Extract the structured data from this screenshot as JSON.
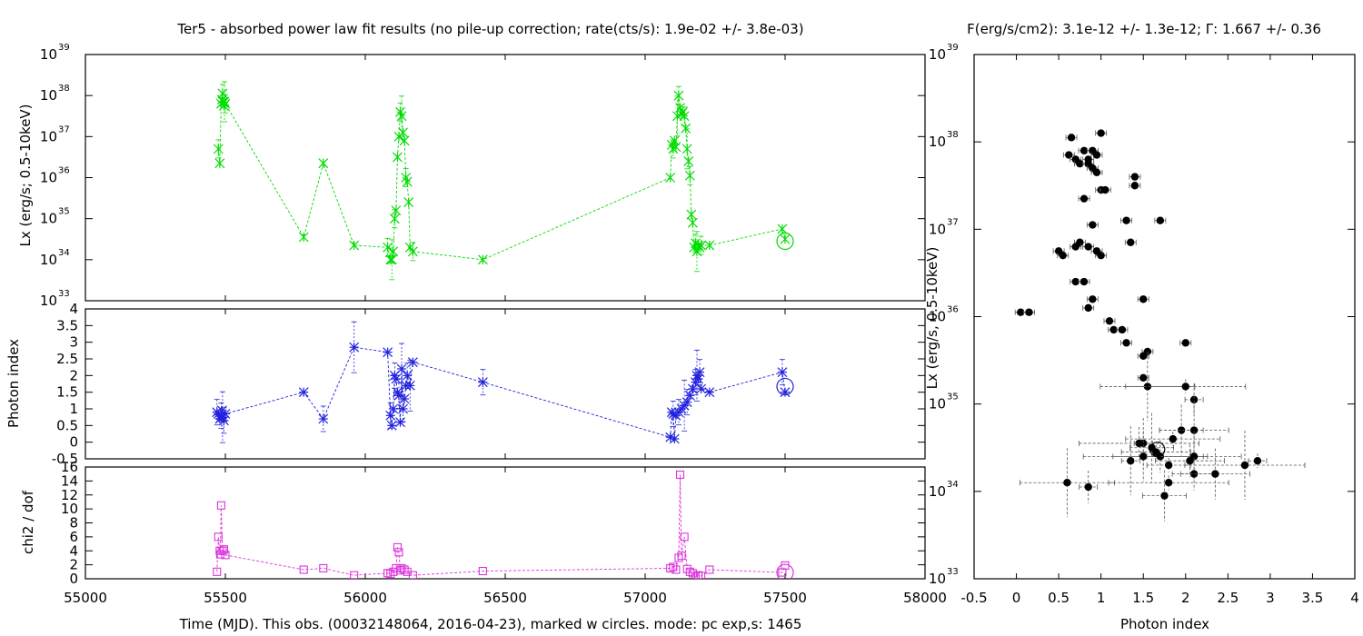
{
  "titles": {
    "left": "Ter5  - absorbed power law fit results (no pile-up correction; rate(cts/s): 1.9e-02 +/- 3.8e-03)",
    "right": "F(erg/s/cm2): 3.1e-12 +/- 1.3e-12; Γ: 1.667 +/- 0.36"
  },
  "chart_data": [
    {
      "type": "line",
      "panel": "lx",
      "ylabel": "Lx (erg/s; 0.5-10keV)",
      "yscale": "log",
      "xlim": [
        55000,
        58000
      ],
      "ylim_exp": [
        33,
        39
      ],
      "color": "#00dd00",
      "marker": "x-star",
      "x": [
        55475,
        55480,
        55485,
        55488,
        55490,
        55492,
        55495,
        55497,
        55500,
        55780,
        55850,
        55960,
        56080,
        56090,
        56095,
        56100,
        56105,
        56110,
        56115,
        56120,
        56125,
        56130,
        56135,
        56140,
        56145,
        56150,
        56155,
        56160,
        56170,
        56420,
        57090,
        57095,
        57100,
        57105,
        57110,
        57115,
        57120,
        57125,
        57130,
        57135,
        57140,
        57145,
        57150,
        57155,
        57160,
        57165,
        57170,
        57175,
        57180,
        57185,
        57190,
        57195,
        57200,
        57230,
        57490,
        57500
      ],
      "y_exp": [
        36.7,
        36.35,
        37.8,
        37.9,
        38.05,
        37.85,
        37.75,
        37.85,
        37.8,
        34.55,
        36.35,
        34.35,
        34.3,
        34.0,
        34.0,
        34.2,
        35.0,
        35.2,
        36.5,
        37.0,
        37.6,
        37.5,
        37.1,
        36.9,
        36.0,
        35.9,
        35.4,
        34.3,
        34.2,
        34.0,
        36.0,
        36.8,
        36.7,
        36.9,
        36.75,
        37.5,
        38.0,
        37.7,
        37.55,
        37.6,
        37.5,
        37.2,
        36.7,
        36.4,
        36.05,
        35.1,
        34.9,
        34.3,
        34.4,
        34.2,
        34.35,
        34.3,
        34.35,
        34.35,
        34.75,
        34.5
      ],
      "current_obs": {
        "x": 57500,
        "y_exp": 34.45
      }
    },
    {
      "type": "line",
      "panel": "gamma",
      "ylabel": "Photon index",
      "xlim": [
        55000,
        58000
      ],
      "ylim": [
        -0.5,
        4
      ],
      "yticks": [
        "4",
        "3.5",
        "3",
        "2.5",
        "2",
        "1.5",
        "1",
        "0.5",
        "0",
        "-0.5"
      ],
      "color": "#2222dd",
      "marker": "star",
      "x": [
        55470,
        55475,
        55480,
        55485,
        55488,
        55490,
        55495,
        55500,
        55780,
        55850,
        55960,
        56080,
        56090,
        56095,
        56100,
        56105,
        56110,
        56115,
        56120,
        56125,
        56130,
        56135,
        56140,
        56145,
        56150,
        56160,
        56170,
        56420,
        57090,
        57095,
        57100,
        57105,
        57110,
        57120,
        57130,
        57140,
        57150,
        57160,
        57170,
        57180,
        57185,
        57190,
        57195,
        57200,
        57230,
        57490,
        57500
      ],
      "y": [
        0.9,
        0.85,
        0.7,
        0.8,
        0.95,
        0.75,
        0.65,
        0.85,
        1.5,
        0.7,
        2.85,
        2.7,
        0.8,
        0.5,
        1.0,
        2.0,
        1.9,
        1.5,
        1.4,
        0.6,
        2.2,
        1.0,
        1.3,
        1.7,
        2.0,
        1.7,
        2.4,
        1.8,
        0.15,
        0.9,
        0.85,
        0.1,
        0.8,
        0.9,
        1.0,
        1.1,
        1.2,
        1.4,
        1.6,
        1.8,
        2.0,
        1.9,
        2.1,
        1.6,
        1.5,
        2.1,
        1.5
      ],
      "current_obs": {
        "x": 57500,
        "y": 1.67
      }
    },
    {
      "type": "line",
      "panel": "chi2",
      "ylabel": "chi2 / dof",
      "xlabel": "Time (MJD). This obs. (00032148064, 2016-04-23), marked w circles. mode: pc exp,s: 1465",
      "xlim": [
        55000,
        58000
      ],
      "xticks": [
        "55000",
        "55500",
        "56000",
        "56500",
        "57000",
        "57500",
        "58000"
      ],
      "ylim": [
        0,
        16
      ],
      "yticks": [
        "16",
        "14",
        "12",
        "10",
        "8",
        "6",
        "4",
        "2",
        "0"
      ],
      "color": "#dd33dd",
      "marker": "square",
      "x": [
        55470,
        55475,
        55480,
        55482,
        55485,
        55490,
        55495,
        55500,
        55780,
        55850,
        55960,
        56080,
        56090,
        56100,
        56110,
        56115,
        56120,
        56125,
        56130,
        56140,
        56150,
        56170,
        56420,
        57090,
        57100,
        57110,
        57120,
        57125,
        57130,
        57140,
        57150,
        57160,
        57170,
        57180,
        57190,
        57200,
        57230,
        57490,
        57500
      ],
      "y": [
        1.0,
        6.0,
        4.0,
        3.5,
        10.5,
        4.0,
        4.2,
        3.4,
        1.3,
        1.5,
        0.5,
        0.8,
        0.7,
        1.0,
        1.5,
        4.5,
        3.8,
        1.2,
        1.5,
        1.3,
        1.0,
        0.5,
        1.1,
        1.5,
        1.7,
        1.3,
        3.0,
        14.9,
        3.3,
        6.0,
        1.4,
        1.0,
        0.8,
        0.3,
        0.5,
        0.4,
        1.3,
        0.9,
        1.9
      ],
      "current_obs": {
        "x": 57500,
        "y": 0.9
      }
    },
    {
      "type": "scatter",
      "panel": "lx-vs-gamma",
      "xlabel": "Photon index",
      "ylabel": "Lx (erg/s, 0.5-10keV)",
      "yscale": "log",
      "xlim": [
        -0.5,
        4
      ],
      "xticks": [
        "-0.5",
        "0",
        "0.5",
        "1",
        "1.5",
        "2",
        "2.5",
        "3",
        "3.5",
        "4"
      ],
      "ylim_exp": [
        33,
        39
      ],
      "color": "#000000",
      "marker": "filled-circle",
      "points": [
        [
          0.65,
          38.05
        ],
        [
          0.62,
          37.85
        ],
        [
          0.7,
          37.8
        ],
        [
          0.75,
          37.75
        ],
        [
          0.8,
          37.9
        ],
        [
          0.85,
          37.8
        ],
        [
          0.9,
          37.9
        ],
        [
          0.95,
          37.85
        ],
        [
          1.0,
          38.1
        ],
        [
          0.85,
          37.75
        ],
        [
          0.9,
          37.7
        ],
        [
          0.95,
          37.65
        ],
        [
          1.0,
          37.45
        ],
        [
          1.05,
          37.45
        ],
        [
          1.4,
          37.6
        ],
        [
          1.4,
          37.5
        ],
        [
          0.8,
          37.35
        ],
        [
          0.75,
          36.85
        ],
        [
          0.7,
          36.8
        ],
        [
          0.9,
          37.05
        ],
        [
          1.3,
          37.1
        ],
        [
          1.7,
          37.1
        ],
        [
          1.35,
          36.85
        ],
        [
          0.85,
          36.8
        ],
        [
          1.0,
          36.7
        ],
        [
          0.95,
          36.75
        ],
        [
          0.5,
          36.75
        ],
        [
          0.55,
          36.7
        ],
        [
          0.7,
          36.4
        ],
        [
          0.8,
          36.4
        ],
        [
          0.9,
          36.2
        ],
        [
          0.85,
          36.1
        ],
        [
          0.05,
          36.05
        ],
        [
          0.15,
          36.05
        ],
        [
          1.1,
          35.95
        ],
        [
          1.15,
          35.85
        ],
        [
          1.25,
          35.85
        ],
        [
          1.3,
          35.7
        ],
        [
          1.5,
          36.2
        ],
        [
          1.55,
          35.6
        ],
        [
          1.5,
          35.55
        ],
        [
          2.0,
          35.7
        ],
        [
          1.5,
          35.3
        ],
        [
          1.55,
          35.2
        ],
        [
          2.0,
          35.2
        ],
        [
          2.1,
          35.05
        ],
        [
          1.95,
          34.7
        ],
        [
          2.1,
          34.7
        ],
        [
          1.85,
          34.6
        ],
        [
          1.45,
          34.55
        ],
        [
          1.5,
          34.55
        ],
        [
          1.6,
          34.5
        ],
        [
          1.65,
          34.45
        ],
        [
          1.7,
          34.4
        ],
        [
          1.5,
          34.4
        ],
        [
          1.35,
          34.35
        ],
        [
          1.8,
          34.3
        ],
        [
          2.05,
          34.35
        ],
        [
          2.1,
          34.4
        ],
        [
          2.7,
          34.3
        ],
        [
          2.85,
          34.35
        ],
        [
          2.1,
          34.2
        ],
        [
          2.35,
          34.2
        ],
        [
          0.6,
          34.1
        ],
        [
          1.8,
          34.1
        ],
        [
          0.85,
          34.05
        ],
        [
          1.75,
          33.95
        ]
      ],
      "current_obs": {
        "x": 1.667,
        "y_exp": 34.48
      }
    }
  ]
}
